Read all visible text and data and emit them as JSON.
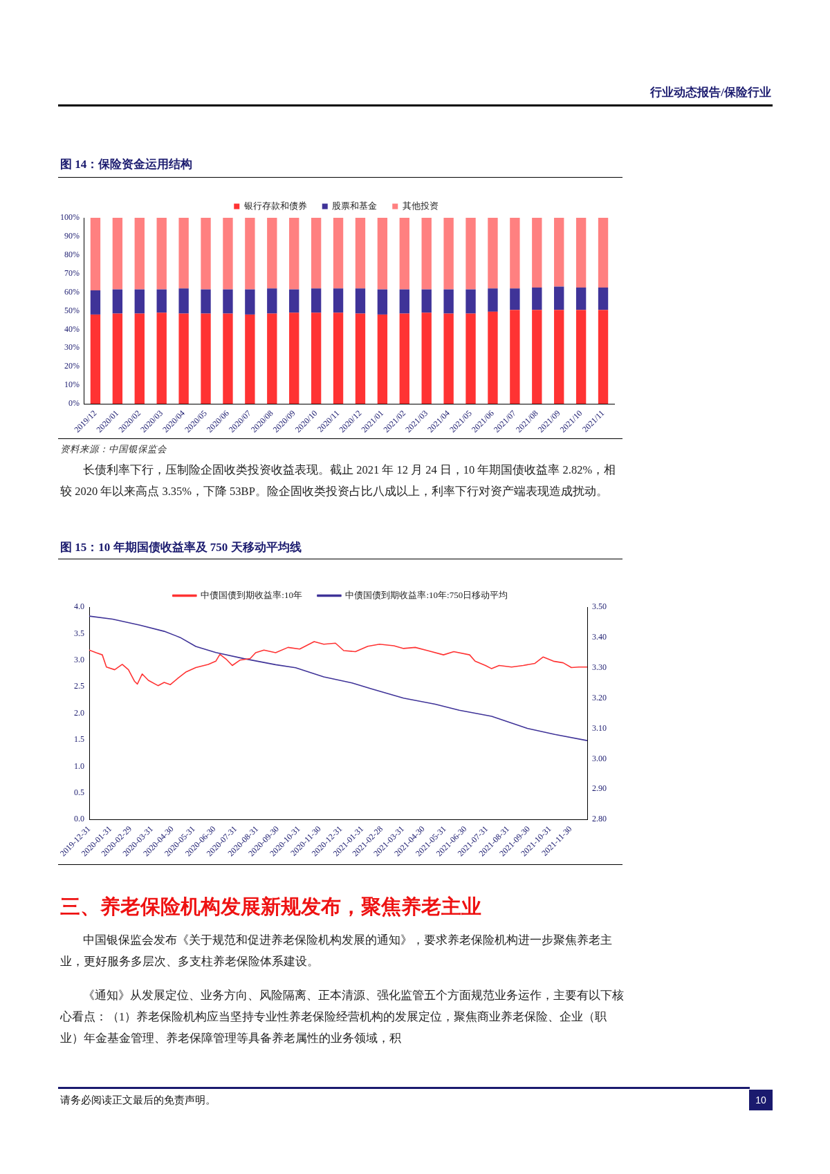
{
  "chart_data": [
    {
      "type": "bar",
      "title": "图 14：保险资金运用结构",
      "stacked": true,
      "legend": "top",
      "categories": [
        "2019/12",
        "2020/01",
        "2020/02",
        "2020/03",
        "2020/04",
        "2020/05",
        "2020/06",
        "2020/07",
        "2020/08",
        "2020/09",
        "2020/10",
        "2020/11",
        "2020/12",
        "2021/01",
        "2021/02",
        "2021/03",
        "2021/04",
        "2021/05",
        "2021/06",
        "2021/07",
        "2021/08",
        "2021/09",
        "2021/10",
        "2021/11"
      ],
      "series": [
        {
          "name": "银行存款和债券",
          "color": "#ff3333",
          "values": [
            48,
            48.5,
            48.5,
            49,
            48.5,
            48.5,
            48.5,
            48,
            48.5,
            49,
            49,
            49,
            48.5,
            48,
            48.5,
            49,
            48.5,
            48.5,
            49.5,
            50.5,
            50.5,
            50.5,
            50.5,
            50.5
          ]
        },
        {
          "name": "股票和基金",
          "color": "#3f3398",
          "values": [
            13,
            13,
            13,
            12.5,
            13.5,
            13,
            13,
            13.5,
            13.5,
            12.5,
            13,
            13,
            13.5,
            13.5,
            13,
            12.5,
            13,
            13,
            12.5,
            11.5,
            12,
            12.5,
            12,
            12
          ]
        },
        {
          "name": "其他投资",
          "color": "#ff8080",
          "values": [
            39,
            38.5,
            38.5,
            38.5,
            38,
            38.5,
            38.5,
            38.5,
            38,
            38.5,
            38,
            38,
            38,
            38.5,
            38.5,
            38.5,
            38.5,
            38.5,
            38,
            38,
            37.5,
            37,
            37.5,
            37.5
          ]
        }
      ],
      "ylim": [
        0,
        100
      ],
      "yticks": [
        {
          "value": 0,
          "label": "0%"
        },
        {
          "value": 10,
          "label": "10%"
        },
        {
          "value": 20,
          "label": "20%"
        },
        {
          "value": 30,
          "label": "30%"
        },
        {
          "value": 40,
          "label": "40%"
        },
        {
          "value": 50,
          "label": "50%"
        },
        {
          "value": 60,
          "label": "60%"
        },
        {
          "value": 70,
          "label": "70%"
        },
        {
          "value": 80,
          "label": "80%"
        },
        {
          "value": 90,
          "label": "90%"
        },
        {
          "value": 100,
          "label": "100%"
        }
      ],
      "annotations": [
        "行业动态报告/保险行业",
        "资料来源：中国银保监会",
        "长债利率下行，压制险企固收类投资收益表现。截止 2021 年 12 月 24 日，10 年期国债收益率 2.82%，相较 2020 年以来高点 3.35%，下降 53BP。险企固收类投资占比八成以上，利率下行对资产端表现造成扰动。"
      ]
    },
    {
      "type": "line",
      "title": "图 15：10 年期国债收益率及 750 天移动平均线",
      "legend": "top",
      "series": [
        {
          "name": "中债国债到期收益率:10年",
          "color": "#ff3333",
          "x": [
            "2019-12-31",
            "2020-01-10",
            "2020-01-19",
            "2020-01-25",
            "2020-02-06",
            "2020-02-17",
            "2020-02-26",
            "2020-03-06",
            "2020-03-10",
            "2020-03-17",
            "2020-03-26",
            "2020-04-09",
            "2020-04-18",
            "2020-04-27",
            "2020-05-08",
            "2020-05-20",
            "2020-06-03",
            "2020-06-21",
            "2020-07-02",
            "2020-07-08",
            "2020-07-17",
            "2020-07-26",
            "2020-08-06",
            "2020-08-21",
            "2020-08-29",
            "2020-09-10",
            "2020-09-27",
            "2020-10-15",
            "2020-11-01",
            "2020-11-22",
            "2020-12-06",
            "2020-12-23",
            "2021-01-04",
            "2021-01-21",
            "2021-02-08",
            "2021-02-25",
            "2021-03-18",
            "2021-04-01",
            "2021-04-18",
            "2021-05-06",
            "2021-05-29",
            "2021-06-13",
            "2021-07-06",
            "2021-07-14",
            "2021-07-29",
            "2021-08-07",
            "2021-08-18",
            "2021-09-05",
            "2021-09-22",
            "2021-10-09",
            "2021-10-21",
            "2021-11-05",
            "2021-11-19",
            "2021-12-01",
            "2021-12-12",
            "2021-12-24"
          ],
          "values": [
            3.19,
            3.14,
            3.1,
            2.87,
            2.82,
            2.92,
            2.82,
            2.6,
            2.55,
            2.74,
            2.62,
            2.52,
            2.58,
            2.54,
            2.66,
            2.78,
            2.86,
            2.92,
            2.98,
            3.11,
            3.02,
            2.9,
            3.0,
            3.03,
            3.14,
            3.19,
            3.14,
            3.24,
            3.21,
            3.35,
            3.3,
            3.32,
            3.18,
            3.16,
            3.26,
            3.3,
            3.27,
            3.22,
            3.24,
            3.18,
            3.1,
            3.16,
            3.1,
            2.98,
            2.9,
            2.84,
            2.9,
            2.87,
            2.9,
            2.94,
            3.06,
            2.98,
            2.95,
            2.86,
            2.87,
            2.87
          ]
        },
        {
          "name": "中债国债到期收益率:10年:750日移动平均",
          "color": "#3f3398",
          "axis": "y2",
          "x": [
            "2019-12-31",
            "2020-02-03",
            "2020-03-14",
            "2020-04-18",
            "2020-05-11",
            "2020-06-03",
            "2020-07-02",
            "2020-08-12",
            "2020-09-27",
            "2020-10-26",
            "2020-12-06",
            "2021-01-16",
            "2021-02-14",
            "2021-04-01",
            "2021-05-17",
            "2021-06-21",
            "2021-08-07",
            "2021-09-28",
            "2021-11-07",
            "2021-12-24"
          ],
          "values": [
            3.47,
            3.46,
            3.44,
            3.42,
            3.4,
            3.37,
            3.35,
            3.33,
            3.31,
            3.3,
            3.27,
            3.25,
            3.23,
            3.2,
            3.18,
            3.16,
            3.14,
            3.1,
            3.08,
            3.06
          ]
        }
      ],
      "xlim": [
        "2019-12-31",
        "2021-12-24"
      ],
      "xticks": [
        "2019-12-31",
        "2020-01-31",
        "2020-02-29",
        "2020-03-31",
        "2020-04-30",
        "2020-05-31",
        "2020-06-30",
        "2020-07-31",
        "2020-08-31",
        "2020-09-30",
        "2020-10-31",
        "2020-11-30",
        "2020-12-31",
        "2021-01-31",
        "2021-02-28",
        "2021-03-31",
        "2021-04-30",
        "2021-05-31",
        "2021-06-30",
        "2021-07-31",
        "2021-08-31",
        "2021-09-30",
        "2021-10-31",
        "2021-11-30"
      ],
      "ylim": [
        0,
        4
      ],
      "yticks": [
        {
          "value": 0,
          "label": "0.0"
        },
        0.5,
        {
          "value": 1,
          "label": "1.0"
        },
        1.5,
        {
          "value": 2,
          "label": "2.0"
        },
        2.5,
        {
          "value": 3,
          "label": "3.0"
        },
        3.5,
        {
          "value": 4,
          "label": "4.0"
        }
      ],
      "y2lim": [
        2.8,
        3.5
      ],
      "y2ticks": [
        {
          "value": 2.8,
          "label": "2.80"
        },
        {
          "value": 2.9,
          "label": "2.90"
        },
        {
          "value": 3,
          "label": "3.00"
        },
        {
          "value": 3.1,
          "label": "3.10"
        },
        {
          "value": 3.2,
          "label": "3.20"
        },
        {
          "value": 3.3,
          "label": "3.30"
        },
        {
          "value": 3.4,
          "label": "3.40"
        },
        {
          "value": 3.5,
          "label": "3.50"
        }
      ],
      "annotations": [
        "三、养老保险机构发展新规发布，聚焦养老主业",
        "中国银保监会发布《关于规范和促进养老保险机构发展的通知》，要求养老保险机构进一步聚焦养老主业，更好服务多层次、多支柱养老保险体系建设。",
        "《通知》从发展定位、业务方向、风险隔离、正本清源、强化监管五个方面规范业务运作，主要有以下核心看点：（1）养老保险机构应当坚持专业性养老保险经营机构的发展定位，聚焦商业养老保险、企业（职业）年金基金管理、养老保障管理等具备养老属性的业务领域，积",
        "请务必阅读正文最后的免责声明。",
        "10"
      ]
    }
  ]
}
